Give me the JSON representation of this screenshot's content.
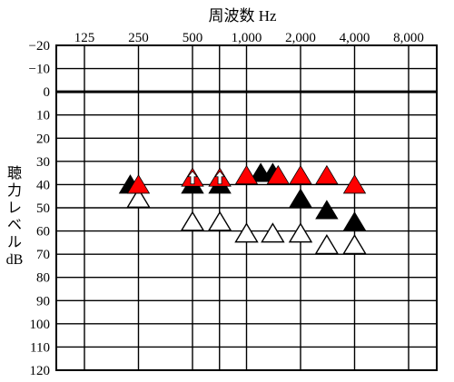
{
  "chart_data": {
    "type": "scatter",
    "title": "周波数 Hz",
    "ylabel": "聴力レベル dB",
    "xlabel": "",
    "x_ticks": [
      "125",
      "250",
      "500",
      "1,000",
      "2,000",
      "4,000",
      "8,000"
    ],
    "y_ticks": [
      "−20",
      "−10",
      "0",
      "10",
      "20",
      "30",
      "40",
      "50",
      "60",
      "70",
      "80",
      "90",
      "100",
      "110",
      "120"
    ],
    "ylim": [
      -20,
      120
    ],
    "y_inverted": true,
    "x_scale": "log2-octave",
    "reference_line_db": 0,
    "series": [
      {
        "marker": "filled-black-triangle",
        "color": "#000000",
        "points": [
          {
            "x": 225,
            "y": 40
          },
          {
            "x": 500,
            "y": 40
          },
          {
            "x": 710,
            "y": 40
          },
          {
            "x": 1200,
            "y": 35
          },
          {
            "x": 1400,
            "y": 35
          },
          {
            "x": 2000,
            "y": 46
          },
          {
            "x": 2800,
            "y": 51
          },
          {
            "x": 4000,
            "y": 56
          }
        ]
      },
      {
        "marker": "filled-red-triangle",
        "color": "#ff0000",
        "points": [
          {
            "x": 250,
            "y": 40
          },
          {
            "x": 500,
            "y": 37
          },
          {
            "x": 710,
            "y": 37
          },
          {
            "x": 1000,
            "y": 36
          },
          {
            "x": 1500,
            "y": 36
          },
          {
            "x": 2000,
            "y": 36
          },
          {
            "x": 2800,
            "y": 36
          },
          {
            "x": 4000,
            "y": 40
          }
        ]
      },
      {
        "marker": "open-triangle",
        "color": "#000000",
        "points": [
          {
            "x": 250,
            "y": 46
          },
          {
            "x": 500,
            "y": 56
          },
          {
            "x": 710,
            "y": 56
          },
          {
            "x": 1000,
            "y": 61
          },
          {
            "x": 1400,
            "y": 61
          },
          {
            "x": 2000,
            "y": 61
          },
          {
            "x": 2800,
            "y": 66
          },
          {
            "x": 4000,
            "y": 66
          }
        ]
      }
    ],
    "arrows": [
      {
        "x": 500,
        "y": 37
      },
      {
        "x": 710,
        "y": 37
      }
    ]
  }
}
